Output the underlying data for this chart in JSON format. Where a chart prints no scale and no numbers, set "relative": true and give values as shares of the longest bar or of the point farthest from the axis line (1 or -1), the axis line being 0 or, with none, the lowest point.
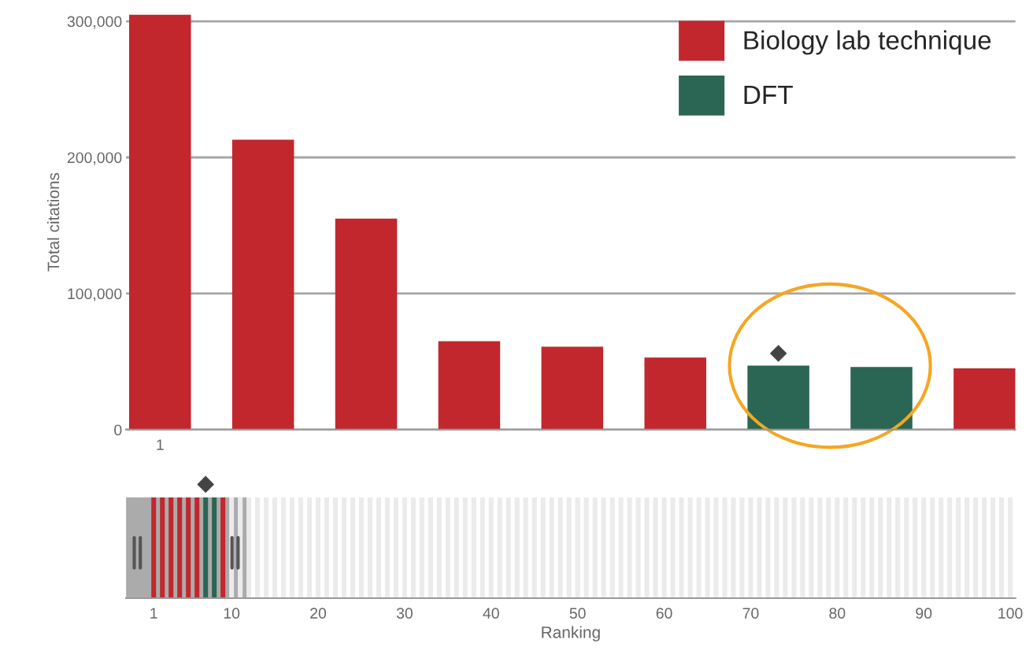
{
  "chart_data": [
    {
      "type": "bar",
      "ylabel": "Total citations",
      "categories": [
        "1",
        null,
        null,
        null,
        null,
        null,
        null,
        null,
        null
      ],
      "series": [
        {
          "name": "Biology lab technique",
          "color": "#c1272d",
          "values": [
            305000,
            213000,
            155000,
            65000,
            61000,
            53000,
            null,
            null,
            45000
          ]
        },
        {
          "name": "DFT",
          "color": "#2a6653",
          "values": [
            null,
            null,
            null,
            null,
            null,
            null,
            47000,
            46000,
            null
          ]
        }
      ],
      "ylim": [
        0,
        305000
      ],
      "yticks": [
        {
          "value": 0,
          "label": "0"
        },
        {
          "value": 100000,
          "label": "100,000"
        },
        {
          "value": 200000,
          "label": "200,000"
        },
        {
          "value": 300000,
          "label": "300,000"
        }
      ],
      "grid": "y",
      "legend": "top right"
    },
    {
      "type": "bar",
      "xlabel": "Ranking",
      "relative": true,
      "x": [
        1,
        2,
        3,
        4,
        5,
        6,
        7,
        8,
        9,
        10,
        11,
        12,
        13,
        14,
        15,
        16,
        17,
        18,
        19,
        20,
        21,
        22,
        23,
        24,
        25,
        26,
        27,
        28,
        29,
        30,
        31,
        32,
        33,
        34,
        35,
        36,
        37,
        38,
        39,
        40,
        41,
        42,
        43,
        44,
        45,
        46,
        47,
        48,
        49,
        50,
        51,
        52,
        53,
        54,
        55,
        56,
        57,
        58,
        59,
        60,
        61,
        62,
        63,
        64,
        65,
        66,
        67,
        68,
        69,
        70,
        71,
        72,
        73,
        74,
        75,
        76,
        77,
        78,
        79,
        80,
        81,
        82,
        83,
        84,
        85,
        86,
        87,
        88,
        89,
        90,
        91,
        92,
        93,
        94,
        95,
        96,
        97,
        98,
        99,
        100
      ],
      "values": [
        1,
        1,
        1,
        1,
        1,
        1,
        1,
        1,
        1,
        1,
        1,
        1,
        1,
        1,
        1,
        1,
        1,
        1,
        1,
        1,
        1,
        1,
        1,
        1,
        1,
        1,
        1,
        1,
        1,
        1,
        1,
        1,
        1,
        1,
        1,
        1,
        1,
        1,
        1,
        1,
        1,
        1,
        1,
        1,
        1,
        1,
        1,
        1,
        1,
        1,
        1,
        1,
        1,
        1,
        1,
        1,
        1,
        1,
        1,
        1,
        1,
        1,
        1,
        1,
        1,
        1,
        1,
        1,
        1,
        1,
        1,
        1,
        1,
        1,
        1,
        1,
        1,
        1,
        1,
        1,
        1,
        1,
        1,
        1,
        1,
        1,
        1,
        1,
        1,
        1,
        1,
        1,
        1,
        1,
        1,
        1,
        1,
        1,
        1,
        1
      ],
      "colors": [
        "#c1272d",
        "#c1272d",
        "#c1272d",
        "#c1272d",
        "#c1272d",
        "#c1272d",
        "#2a6653",
        "#2a6653",
        "#c1272d",
        "#ebebeb",
        "#ebebeb",
        "#ebebeb",
        "#ebebeb",
        "#ebebeb",
        "#ebebeb",
        "#ebebeb",
        "#ebebeb",
        "#ebebeb",
        "#ebebeb",
        "#ebebeb",
        "#ebebeb",
        "#ebebeb",
        "#ebebeb",
        "#ebebeb",
        "#ebebeb",
        "#ebebeb",
        "#ebebeb",
        "#ebebeb",
        "#ebebeb",
        "#ebebeb",
        "#ebebeb",
        "#ebebeb",
        "#ebebeb",
        "#ebebeb",
        "#ebebeb",
        "#ebebeb",
        "#ebebeb",
        "#ebebeb",
        "#ebebeb",
        "#ebebeb",
        "#ebebeb",
        "#ebebeb",
        "#ebebeb",
        "#ebebeb",
        "#ebebeb",
        "#ebebeb",
        "#ebebeb",
        "#ebebeb",
        "#ebebeb",
        "#ebebeb",
        "#ebebeb",
        "#ebebeb",
        "#ebebeb",
        "#ebebeb",
        "#ebebeb",
        "#ebebeb",
        "#ebebeb",
        "#ebebeb",
        "#ebebeb",
        "#ebebeb",
        "#ebebeb",
        "#ebebeb",
        "#ebebeb",
        "#ebebeb",
        "#ebebeb",
        "#ebebeb",
        "#ebebeb",
        "#ebebeb",
        "#ebebeb",
        "#ebebeb",
        "#ebebeb",
        "#ebebeb",
        "#ebebeb",
        "#ebebeb",
        "#ebebeb",
        "#ebebeb",
        "#ebebeb",
        "#ebebeb",
        "#ebebeb",
        "#ebebeb",
        "#ebebeb",
        "#ebebeb",
        "#ebebeb",
        "#ebebeb",
        "#ebebeb",
        "#ebebeb",
        "#ebebeb",
        "#ebebeb",
        "#ebebeb",
        "#ebebeb",
        "#ebebeb",
        "#ebebeb",
        "#ebebeb",
        "#ebebeb",
        "#ebebeb",
        "#ebebeb",
        "#ebebeb",
        "#ebebeb",
        "#ebebeb",
        "#ebebeb"
      ],
      "xlim": [
        -2.2,
        100.6
      ],
      "xticks": [
        1,
        10,
        20,
        30,
        40,
        50,
        60,
        70,
        80,
        90,
        100
      ],
      "bands": [
        {
          "axis": "x",
          "from": -2.2,
          "to": 12.1,
          "color": "#ababab"
        }
      ],
      "tick_labels": "x",
      "grid": false,
      "legend": false
    }
  ]
}
